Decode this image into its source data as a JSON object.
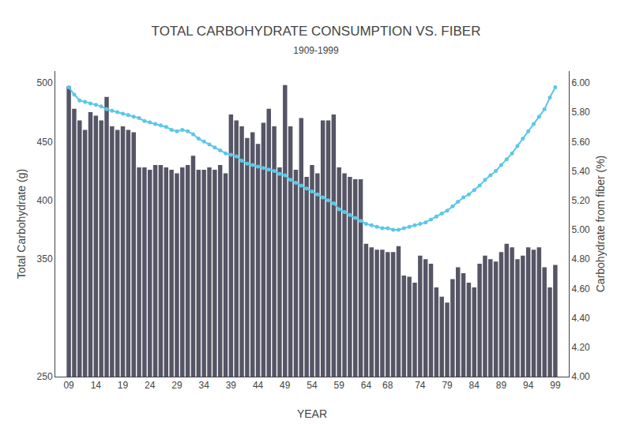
{
  "chart_data": {
    "type": "bar",
    "title": "TOTAL CARBOHYDRATE CONSUMPTION VS. FIBER",
    "subtitle": "1909-1999",
    "xlabel": "YEAR",
    "ylabel": "Total Carbohydrate (g)",
    "y2label": "Carbohydrate from fiber (%)",
    "x": [
      1909,
      1910,
      1911,
      1912,
      1913,
      1914,
      1915,
      1916,
      1917,
      1918,
      1919,
      1920,
      1921,
      1922,
      1923,
      1924,
      1925,
      1926,
      1927,
      1928,
      1929,
      1930,
      1931,
      1932,
      1933,
      1934,
      1935,
      1936,
      1937,
      1938,
      1939,
      1940,
      1941,
      1942,
      1943,
      1944,
      1945,
      1946,
      1947,
      1948,
      1949,
      1950,
      1951,
      1952,
      1953,
      1954,
      1955,
      1956,
      1957,
      1958,
      1959,
      1960,
      1961,
      1962,
      1963,
      1964,
      1965,
      1966,
      1967,
      1968,
      1969,
      1970,
      1971,
      1972,
      1973,
      1974,
      1975,
      1976,
      1977,
      1978,
      1979,
      1980,
      1981,
      1982,
      1983,
      1984,
      1985,
      1986,
      1987,
      1988,
      1989,
      1990,
      1991,
      1992,
      1993,
      1994,
      1995,
      1996,
      1997,
      1998,
      1999
    ],
    "series": [
      {
        "type": "bar",
        "color": "#555566",
        "values": [
          497,
          478,
          468,
          460,
          475,
          472,
          468,
          488,
          463,
          460,
          463,
          460,
          458,
          428,
          428,
          426,
          430,
          430,
          428,
          426,
          423,
          428,
          430,
          438,
          426,
          426,
          428,
          426,
          430,
          423,
          473,
          468,
          463,
          453,
          458,
          448,
          466,
          478,
          463,
          428,
          498,
          463,
          426,
          470,
          420,
          430,
          423,
          468,
          468,
          473,
          428,
          423,
          420,
          418,
          418,
          363,
          360,
          358,
          358,
          356,
          356,
          361,
          336,
          335,
          330,
          353,
          350,
          346,
          326,
          318,
          313,
          333,
          343,
          338,
          330,
          326,
          346,
          353,
          350,
          348,
          356,
          363,
          360,
          350,
          353,
          360,
          358,
          360,
          343,
          326,
          345
        ]
      },
      {
        "type": "line",
        "axis": "y2",
        "color": "#5bc8e8",
        "marker": "circle",
        "values": [
          5.97,
          5.92,
          5.88,
          5.87,
          5.86,
          5.85,
          5.84,
          5.82,
          5.81,
          5.8,
          5.79,
          5.78,
          5.77,
          5.76,
          5.74,
          5.73,
          5.72,
          5.71,
          5.7,
          5.68,
          5.67,
          5.68,
          5.67,
          5.65,
          5.62,
          5.6,
          5.58,
          5.56,
          5.54,
          5.52,
          5.51,
          5.5,
          5.47,
          5.45,
          5.44,
          5.43,
          5.42,
          5.41,
          5.4,
          5.38,
          5.37,
          5.34,
          5.32,
          5.3,
          5.28,
          5.26,
          5.24,
          5.22,
          5.2,
          5.18,
          5.14,
          5.12,
          5.1,
          5.08,
          5.06,
          5.04,
          5.03,
          5.02,
          5.01,
          5.01,
          5.0,
          5.0,
          5.01,
          5.02,
          5.03,
          5.04,
          5.05,
          5.07,
          5.09,
          5.11,
          5.13,
          5.16,
          5.19,
          5.22,
          5.24,
          5.27,
          5.3,
          5.34,
          5.37,
          5.4,
          5.44,
          5.48,
          5.52,
          5.57,
          5.62,
          5.67,
          5.72,
          5.77,
          5.82,
          5.9,
          5.97
        ]
      }
    ],
    "xlim": [
      1906.5,
      2001.5
    ],
    "xticks": [
      {
        "value": 1909,
        "label": "09"
      },
      {
        "value": 1914,
        "label": "14"
      },
      {
        "value": 1919,
        "label": "19"
      },
      {
        "value": 1924,
        "label": "24"
      },
      {
        "value": 1929,
        "label": "29"
      },
      {
        "value": 1934,
        "label": "34"
      },
      {
        "value": 1939,
        "label": "39"
      },
      {
        "value": 1944,
        "label": "44"
      },
      {
        "value": 1949,
        "label": "49"
      },
      {
        "value": 1954,
        "label": "54"
      },
      {
        "value": 1959,
        "label": "59"
      },
      {
        "value": 1964,
        "label": "64"
      },
      {
        "value": 1968,
        "label": "68"
      },
      {
        "value": 1974,
        "label": "74"
      },
      {
        "value": 1979,
        "label": "79"
      },
      {
        "value": 1984,
        "label": "84"
      },
      {
        "value": 1989,
        "label": "89"
      },
      {
        "value": 1994,
        "label": "94"
      },
      {
        "value": 1999,
        "label": "99"
      }
    ],
    "ylim": [
      250,
      510
    ],
    "yticks": [
      500,
      450,
      400,
      350,
      250
    ],
    "y2lim": [
      4.0,
      6.08
    ],
    "y2ticks": [
      {
        "value": 6.0,
        "label": "6.00"
      },
      {
        "value": 5.8,
        "label": "5.80"
      },
      {
        "value": 5.6,
        "label": "5.60"
      },
      {
        "value": 5.4,
        "label": "5.40"
      },
      {
        "value": 5.2,
        "label": "5.20"
      },
      {
        "value": 5.0,
        "label": "5.00"
      },
      {
        "value": 4.8,
        "label": "4.80"
      },
      {
        "value": 4.6,
        "label": "4.60"
      },
      {
        "value": 4.4,
        "label": "4.40"
      },
      {
        "value": 4.2,
        "label": "4.20"
      },
      {
        "value": 4.0,
        "label": "4.00"
      }
    ],
    "grid": false
  }
}
